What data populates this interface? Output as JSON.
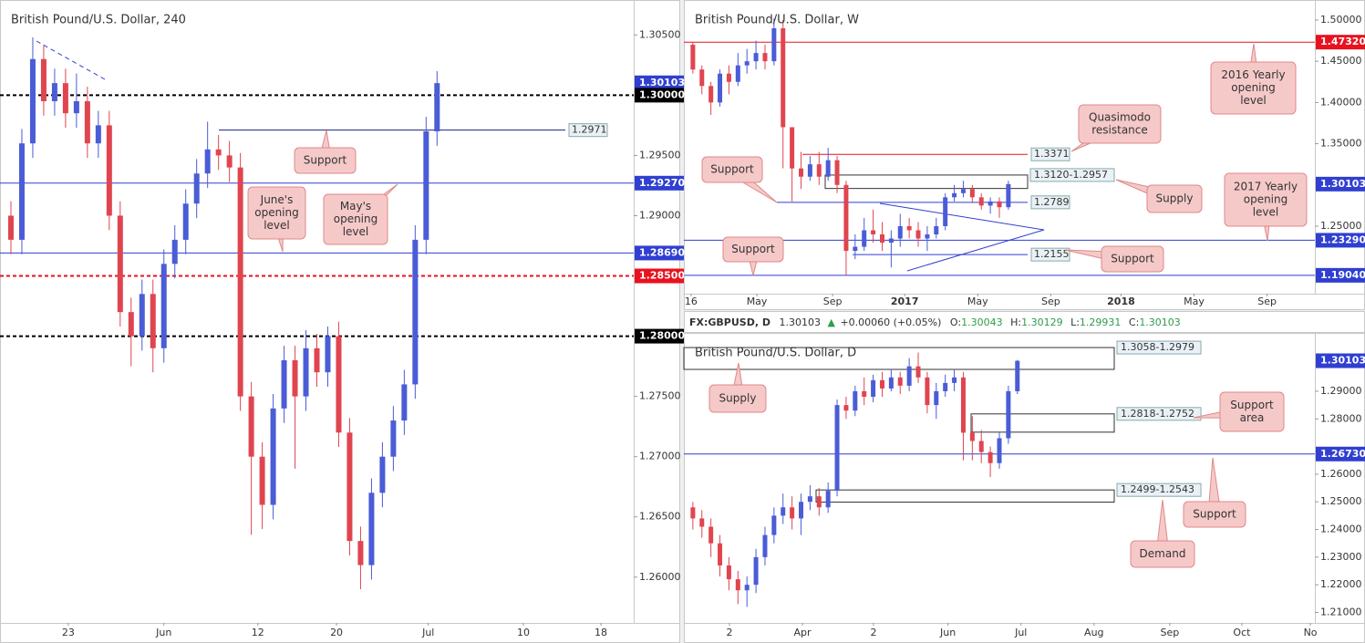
{
  "header": {
    "symbol": "FX:GBPUSD, D",
    "last": "1.30103",
    "arrow": "▲",
    "change": "+0.00060 (+0.05%)",
    "ohlc": [
      {
        "key": "O:",
        "value": "1.30043"
      },
      {
        "key": "H:",
        "value": "1.30129"
      },
      {
        "key": "L:",
        "value": "1.29931"
      },
      {
        "key": "C:",
        "value": "1.30103"
      }
    ]
  },
  "chart_data": [
    {
      "type": "candlestick",
      "title": "British Pound/U.S. Dollar, 240",
      "up_color": "#4a5cd6",
      "down_color": "#e0454f",
      "ylim": [
        1.2562,
        1.3079
      ],
      "xlim": [
        0,
        58
      ],
      "yticks": [
        {
          "value": 1.305,
          "label": "1.30500"
        },
        {
          "value": 1.295,
          "label": "1.29500"
        },
        {
          "value": 1.29,
          "label": "1.29000"
        },
        {
          "value": 1.275,
          "label": "1.27500"
        },
        {
          "value": 1.27,
          "label": "1.27000"
        },
        {
          "value": 1.265,
          "label": "1.26500"
        },
        {
          "value": 1.26,
          "label": "1.26000"
        }
      ],
      "xticks": [
        {
          "value": 6.25,
          "label": "23"
        },
        {
          "value": 15,
          "label": "Jun"
        },
        {
          "value": 23.6,
          "label": "12"
        },
        {
          "value": 30.8,
          "label": "20"
        },
        {
          "value": 39.2,
          "label": "Jul"
        },
        {
          "value": 47.9,
          "label": "10"
        },
        {
          "value": 55,
          "label": "18"
        }
      ],
      "candles": {
        "open": [
          1.29,
          1.288,
          1.296,
          1.303,
          1.2995,
          1.301,
          1.2985,
          1.2995,
          1.296,
          1.2975,
          1.29,
          1.282,
          1.28,
          1.2835,
          1.279,
          1.286,
          1.288,
          1.291,
          1.2935,
          1.2955,
          1.295,
          1.294,
          1.275,
          1.27,
          1.266,
          1.274,
          1.278,
          1.275,
          1.279,
          1.277,
          1.28,
          1.272,
          1.263,
          1.261,
          1.267,
          1.27,
          1.273,
          1.276,
          1.288,
          1.297
        ],
        "high": [
          1.2912,
          1.2972,
          1.3048,
          1.3042,
          1.3022,
          1.3022,
          1.3018,
          1.3007,
          1.2987,
          1.2987,
          1.2912,
          1.2832,
          1.2847,
          1.2847,
          1.2872,
          1.2892,
          1.2922,
          1.2947,
          1.2978,
          1.2967,
          1.2962,
          1.2952,
          1.2762,
          1.2712,
          1.2752,
          1.2792,
          1.2792,
          1.2805,
          1.2802,
          1.2808,
          1.2812,
          1.2732,
          1.2642,
          1.2682,
          1.2712,
          1.2742,
          1.2772,
          1.2892,
          1.2982,
          1.302
        ],
        "low": [
          1.2868,
          1.2868,
          1.2948,
          1.2983,
          1.2983,
          1.2973,
          1.2973,
          1.2948,
          1.2948,
          1.2888,
          1.2808,
          1.2775,
          1.2788,
          1.277,
          1.2778,
          1.2848,
          1.2868,
          1.2898,
          1.2923,
          1.2938,
          1.2928,
          1.2738,
          1.2635,
          1.264,
          1.2648,
          1.2728,
          1.269,
          1.2738,
          1.2758,
          1.2758,
          1.2708,
          1.2618,
          1.259,
          1.2598,
          1.2658,
          1.2688,
          1.2718,
          1.2748,
          1.2868,
          1.2958
        ],
        "close": [
          1.288,
          1.296,
          1.303,
          1.2995,
          1.301,
          1.2985,
          1.2995,
          1.296,
          1.2975,
          1.29,
          1.282,
          1.28,
          1.2835,
          1.279,
          1.286,
          1.288,
          1.291,
          1.2935,
          1.2955,
          1.295,
          1.294,
          1.275,
          1.27,
          1.266,
          1.274,
          1.278,
          1.275,
          1.279,
          1.277,
          1.28,
          1.272,
          1.263,
          1.261,
          1.267,
          1.27,
          1.273,
          1.276,
          1.288,
          1.297,
          1.301
        ]
      },
      "levels": [
        {
          "value": 1.30103,
          "label": "1.30103",
          "color": "#2f3fd0",
          "style": "none",
          "tag": "axis"
        },
        {
          "value": 1.3,
          "label": "1.30000",
          "color": "#000000",
          "style": "dashed",
          "tag": "axis"
        },
        {
          "value": 1.2971,
          "label": "1.2971",
          "color": "#1a237e",
          "style": "solid",
          "tag": "box"
        },
        {
          "value": 1.2927,
          "label": "1.29270",
          "color": "#2f3fd0",
          "style": "solid",
          "tag": "axis"
        },
        {
          "value": 1.2869,
          "label": "1.28690",
          "color": "#2f3fd0",
          "style": "solid",
          "tag": "axis"
        },
        {
          "value": 1.285,
          "label": "1.28500",
          "color": "#e8121e",
          "style": "dashed",
          "tag": "axis"
        },
        {
          "value": 1.28,
          "label": "1.28000",
          "color": "#000000",
          "style": "dashed",
          "tag": "axis"
        }
      ],
      "zones": [],
      "annotations": [
        [
          "Support"
        ],
        [
          "June's",
          "opening",
          "level"
        ],
        [
          "May's",
          "opening",
          "level"
        ]
      ]
    },
    {
      "type": "candlestick",
      "title": "British Pound/U.S. Dollar, W",
      "up_color": "#4a5cd6",
      "down_color": "#e0454f",
      "ylim": [
        1.1681,
        1.5243
      ],
      "xlim": [
        0,
        70
      ],
      "yticks": [
        {
          "value": 1.5,
          "label": "1.50000"
        },
        {
          "value": 1.45,
          "label": "1.45000"
        },
        {
          "value": 1.4,
          "label": "1.40000"
        },
        {
          "value": 1.35,
          "label": "1.35000"
        },
        {
          "value": 1.25,
          "label": "1.25000"
        }
      ],
      "xticks": [
        {
          "value": 0.8,
          "label": "16"
        },
        {
          "value": 8.1,
          "label": "May"
        },
        {
          "value": 16.5,
          "label": "Sep"
        },
        {
          "value": 24.5,
          "label": "2017"
        },
        {
          "value": 32.6,
          "label": "May"
        },
        {
          "value": 40.7,
          "label": "Sep"
        },
        {
          "value": 48.5,
          "label": "2018"
        },
        {
          "value": 56.6,
          "label": "May"
        },
        {
          "value": 64.7,
          "label": "Sep"
        }
      ],
      "candles": {
        "open": [
          1.47,
          1.44,
          1.42,
          1.4,
          1.435,
          1.425,
          1.445,
          1.45,
          1.46,
          1.45,
          1.49,
          1.37,
          1.32,
          1.31,
          1.325,
          1.31,
          1.33,
          1.3,
          1.22,
          1.225,
          1.245,
          1.24,
          1.23,
          1.235,
          1.25,
          1.245,
          1.235,
          1.24,
          1.25,
          1.285,
          1.29,
          1.295,
          1.285,
          1.275,
          1.28,
          1.273
        ],
        "high": [
          1.473,
          1.445,
          1.425,
          1.44,
          1.445,
          1.46,
          1.465,
          1.475,
          1.47,
          1.502,
          1.5,
          1.34,
          1.34,
          1.335,
          1.34,
          1.345,
          1.335,
          1.305,
          1.24,
          1.26,
          1.27,
          1.255,
          1.245,
          1.265,
          1.26,
          1.255,
          1.25,
          1.26,
          1.29,
          1.3,
          1.305,
          1.3,
          1.29,
          1.285,
          1.285,
          1.305
        ],
        "low": [
          1.435,
          1.41,
          1.385,
          1.395,
          1.41,
          1.42,
          1.435,
          1.44,
          1.44,
          1.445,
          1.32,
          1.28,
          1.295,
          1.305,
          1.3,
          1.305,
          1.29,
          1.1904,
          1.21,
          1.22,
          1.23,
          1.22,
          1.2,
          1.225,
          1.235,
          1.225,
          1.22,
          1.235,
          1.245,
          1.28,
          1.285,
          1.278,
          1.27,
          1.265,
          1.26,
          1.27
        ],
        "close": [
          1.44,
          1.42,
          1.4,
          1.435,
          1.425,
          1.445,
          1.45,
          1.46,
          1.45,
          1.49,
          1.37,
          1.32,
          1.31,
          1.325,
          1.31,
          1.33,
          1.3,
          1.22,
          1.225,
          1.245,
          1.24,
          1.23,
          1.235,
          1.25,
          1.245,
          1.235,
          1.24,
          1.25,
          1.285,
          1.29,
          1.295,
          1.285,
          1.275,
          1.28,
          1.273,
          1.301
        ]
      },
      "levels": [
        {
          "value": 1.4732,
          "label": "1.47320",
          "color": "#e8121e",
          "style": "solid",
          "tag": "axis"
        },
        {
          "value": 1.3371,
          "label": "1.3371",
          "color": "#e8121e",
          "style": "solid",
          "tag": "box"
        },
        {
          "value": 1.30103,
          "label": "1.30103",
          "color": "#2f3fd0",
          "style": "none",
          "tag": "axis"
        },
        {
          "value": 1.2789,
          "label": "1.2789",
          "color": "#2f3fd0",
          "style": "solid",
          "tag": "box"
        },
        {
          "value": 1.2329,
          "label": "1.23290",
          "color": "#2f3fd0",
          "style": "solid",
          "tag": "axis"
        },
        {
          "value": 1.2155,
          "label": "1.2155",
          "color": "#2f3fd0",
          "style": "solid",
          "tag": "box"
        },
        {
          "value": 1.1904,
          "label": "1.19040",
          "color": "#2f3fd0",
          "style": "solid",
          "tag": "axis"
        }
      ],
      "zones": [
        {
          "high": 1.312,
          "low": 1.2957,
          "label": "1.3120-1.2957"
        }
      ],
      "annotations": [
        [
          "Quasimodo",
          "resistance"
        ],
        [
          "Support"
        ],
        [
          "Supply"
        ],
        [
          "2016 Yearly",
          "opening",
          "level"
        ],
        [
          "2017 Yearly",
          "opening",
          "level"
        ],
        [
          "Support"
        ],
        [
          "Support"
        ]
      ]
    },
    {
      "type": "candlestick",
      "title": "British Pound/U.S. Dollar, D",
      "up_color": "#4a5cd6",
      "down_color": "#e0454f",
      "ylim": [
        1.2062,
        1.3111
      ],
      "xlim": [
        0,
        70
      ],
      "yticks": [
        {
          "value": 1.29,
          "label": "1.29000"
        },
        {
          "value": 1.28,
          "label": "1.28000"
        },
        {
          "value": 1.26,
          "label": "1.26000"
        },
        {
          "value": 1.25,
          "label": "1.25000"
        },
        {
          "value": 1.24,
          "label": "1.24000"
        },
        {
          "value": 1.23,
          "label": "1.23000"
        },
        {
          "value": 1.22,
          "label": "1.22000"
        },
        {
          "value": 1.21,
          "label": "1.21000"
        }
      ],
      "xticks": [
        {
          "value": 5.06,
          "label": "2"
        },
        {
          "value": 13.15,
          "label": "Apr"
        },
        {
          "value": 21.04,
          "label": "2"
        },
        {
          "value": 29.3,
          "label": "Jun"
        },
        {
          "value": 37.4,
          "label": "Jul"
        },
        {
          "value": 45.5,
          "label": "Aug"
        },
        {
          "value": 53.9,
          "label": "Sep"
        },
        {
          "value": 61.9,
          "label": "Oct"
        },
        {
          "value": 69.5,
          "label": "No"
        }
      ],
      "candles": {
        "open": [
          1.248,
          1.244,
          1.241,
          1.235,
          1.227,
          1.222,
          1.218,
          1.22,
          1.23,
          1.238,
          1.245,
          1.248,
          1.244,
          1.25,
          1.252,
          1.248,
          1.254,
          1.285,
          1.283,
          1.29,
          1.288,
          1.294,
          1.291,
          1.295,
          1.292,
          1.299,
          1.295,
          1.285,
          1.29,
          1.293,
          1.295,
          1.275,
          1.272,
          1.268,
          1.264,
          1.273,
          1.29
        ],
        "high": [
          1.25,
          1.247,
          1.244,
          1.238,
          1.23,
          1.225,
          1.223,
          1.233,
          1.241,
          1.248,
          1.253,
          1.252,
          1.253,
          1.256,
          1.255,
          1.257,
          1.287,
          1.288,
          1.292,
          1.295,
          1.296,
          1.297,
          1.298,
          1.297,
          1.302,
          1.304,
          1.297,
          1.293,
          1.296,
          1.298,
          1.297,
          1.281,
          1.276,
          1.27,
          1.275,
          1.292,
          1.3013
        ],
        "low": [
          1.24,
          1.237,
          1.23,
          1.223,
          1.218,
          1.213,
          1.212,
          1.217,
          1.227,
          1.235,
          1.242,
          1.24,
          1.238,
          1.247,
          1.245,
          1.246,
          1.252,
          1.28,
          1.281,
          1.285,
          1.286,
          1.288,
          1.29,
          1.289,
          1.29,
          1.293,
          1.282,
          1.28,
          1.288,
          1.29,
          1.265,
          1.265,
          1.264,
          1.259,
          1.262,
          1.271,
          1.289
        ],
        "close": [
          1.244,
          1.241,
          1.235,
          1.227,
          1.222,
          1.218,
          1.22,
          1.23,
          1.238,
          1.245,
          1.248,
          1.244,
          1.25,
          1.252,
          1.248,
          1.254,
          1.285,
          1.283,
          1.29,
          1.288,
          1.294,
          1.291,
          1.295,
          1.292,
          1.299,
          1.295,
          1.285,
          1.29,
          1.293,
          1.295,
          1.275,
          1.272,
          1.268,
          1.264,
          1.273,
          1.29,
          1.301
        ]
      },
      "levels": [
        {
          "value": 1.30103,
          "label": "1.30103",
          "color": "#2f3fd0",
          "style": "none",
          "tag": "axis"
        },
        {
          "value": 1.2673,
          "label": "1.26730",
          "color": "#2f3fd0",
          "style": "solid",
          "tag": "axis"
        }
      ],
      "zones": [
        {
          "high": 1.3058,
          "low": 1.2979,
          "label": "1.3058-1.2979"
        },
        {
          "high": 1.2818,
          "low": 1.2752,
          "label": "1.2818-1.2752"
        },
        {
          "high": 1.2543,
          "low": 1.2499,
          "label": "1.2499-1.2543"
        }
      ],
      "annotations": [
        [
          "Supply"
        ],
        [
          "Support",
          "area"
        ],
        [
          "Support"
        ],
        [
          "Demand"
        ]
      ]
    }
  ]
}
